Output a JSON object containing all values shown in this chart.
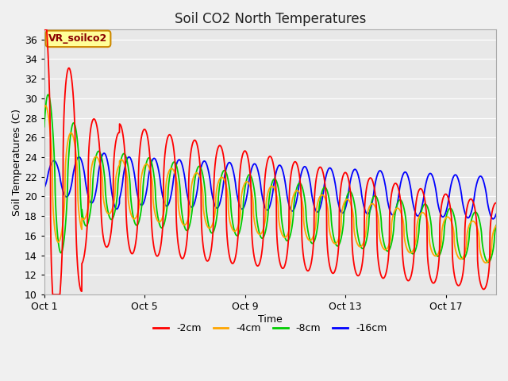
{
  "title": "Soil CO2 North Temperatures",
  "xlabel": "Time",
  "ylabel": "Soil Temperatures (C)",
  "ylim": [
    10,
    37
  ],
  "yticks": [
    10,
    12,
    14,
    16,
    18,
    20,
    22,
    24,
    26,
    28,
    30,
    32,
    34,
    36
  ],
  "xtick_labels": [
    "Oct 1",
    "Oct 5",
    "Oct 9",
    "Oct 13",
    "Oct 17"
  ],
  "xtick_positions": [
    0,
    4,
    8,
    12,
    16
  ],
  "colors": {
    "-2cm": "#ff0000",
    "-4cm": "#ffa500",
    "-8cm": "#00cc00",
    "-16cm": "#0000ff"
  },
  "legend_label": "VR_soilco2",
  "bg_color": "#e8e8e8",
  "fig_bg": "#f0f0f0",
  "total_days": 18,
  "points_per_day": 240
}
